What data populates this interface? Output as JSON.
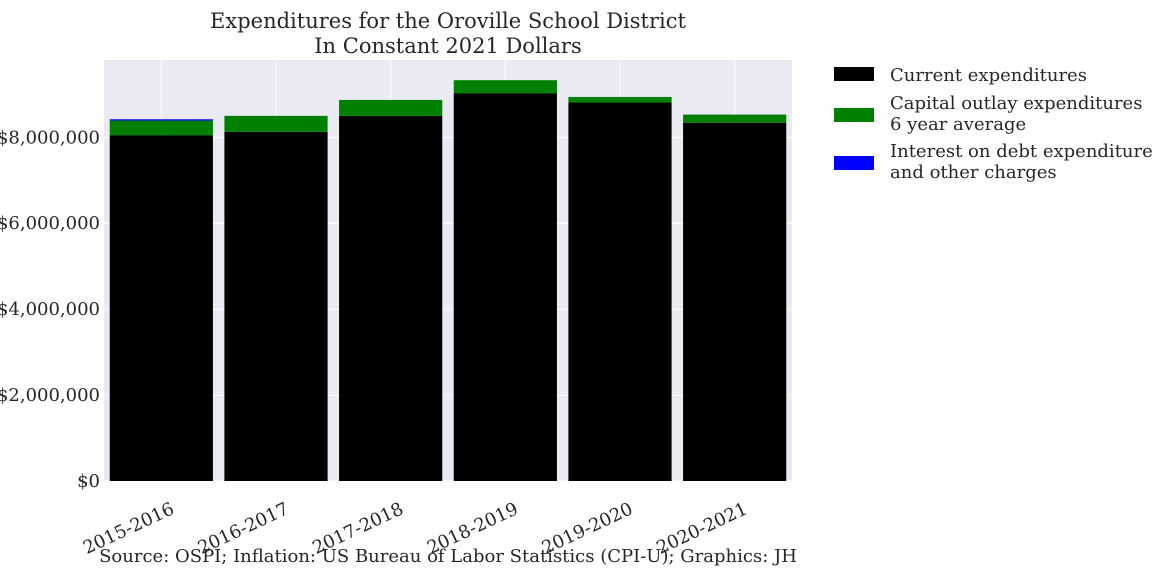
{
  "chart_data": {
    "type": "bar",
    "stacked": true,
    "title": "Expenditures for the Oroville School District",
    "subtitle": "In Constant 2021 Dollars",
    "xlabel": "",
    "ylabel": "",
    "categories": [
      "2015-2016",
      "2016-2017",
      "2017-2018",
      "2018-2019",
      "2019-2020",
      "2020-2021"
    ],
    "ylim": [
      0,
      9800000
    ],
    "yticks": [
      0,
      2000000,
      4000000,
      6000000,
      8000000
    ],
    "ytick_labels": [
      "$0",
      "$2,000,000",
      "$4,000,000",
      "$6,000,000",
      "$8,000,000"
    ],
    "series": [
      {
        "name": "Current expenditures",
        "color": "#000000",
        "values": [
          8050000,
          8130000,
          8500000,
          9020000,
          8810000,
          8340000
        ]
      },
      {
        "name": "Capital outlay expenditures\n6 year average",
        "color": "#008000",
        "values": [
          340000,
          370000,
          370000,
          310000,
          130000,
          190000
        ]
      },
      {
        "name": "Interest on debt expenditures\nand other charges",
        "color": "#0000ff",
        "values": [
          30000,
          0,
          0,
          0,
          0,
          0
        ]
      }
    ],
    "grid": true,
    "legend_position": "outside-top-right",
    "background": "#eaeaf2",
    "source_note": "Source: OSPI; Inflation: US Bureau of Labor Statistics (CPI-U); Graphics: JH"
  }
}
